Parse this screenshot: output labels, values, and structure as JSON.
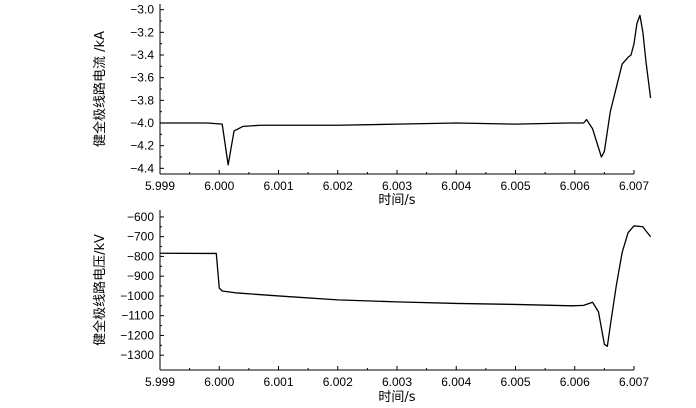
{
  "chart_data": [
    {
      "type": "line",
      "title": "",
      "xlabel": "时间/s",
      "ylabel": "健全极线路电流 /kA",
      "xlim": [
        5.999,
        6.007
      ],
      "ylim": [
        -4.45,
        -2.95
      ],
      "x_ticks": [
        "5.999",
        "6.000",
        "6.001",
        "6.002",
        "6.003",
        "6.004",
        "6.005",
        "6.006",
        "6.007"
      ],
      "y_ticks": [
        "−3.0",
        "−3.2",
        "−3.4",
        "−3.6",
        "−3.8",
        "−4.0",
        "−4.2",
        "−4.4"
      ],
      "x_tick_values": [
        5.999,
        6.0,
        6.001,
        6.002,
        6.003,
        6.004,
        6.005,
        6.006,
        6.007
      ],
      "y_tick_values": [
        -3.0,
        -3.2,
        -3.4,
        -3.6,
        -3.8,
        -4.0,
        -4.2,
        -4.4
      ],
      "grid": false,
      "legend": "none",
      "series": [
        {
          "x": [
            5.999,
            5.9998,
            6.00005,
            6.00015,
            6.00025,
            6.0004,
            6.0007,
            6.001,
            6.002,
            6.003,
            6.004,
            6.005,
            6.0059,
            6.00615,
            6.0062,
            6.0063,
            6.00645,
            6.0065,
            6.0066,
            6.0068,
            6.0069,
            6.00695,
            6.007,
            6.00705,
            6.0071,
            6.00715,
            6.0072,
            6.00728
          ],
          "y": [
            -4.0,
            -4.0,
            -4.01,
            -4.37,
            -4.07,
            -4.03,
            -4.02,
            -4.02,
            -4.02,
            -4.01,
            -4.0,
            -4.01,
            -4.0,
            -4.0,
            -3.97,
            -4.05,
            -4.3,
            -4.25,
            -3.9,
            -3.48,
            -3.42,
            -3.4,
            -3.3,
            -3.12,
            -3.05,
            -3.2,
            -3.45,
            -3.78
          ]
        }
      ]
    },
    {
      "type": "line",
      "title": "",
      "xlabel": "时间/s",
      "ylabel": "健全极线路电压/kV",
      "xlim": [
        5.999,
        6.007
      ],
      "ylim": [
        -1375,
        -565
      ],
      "x_ticks": [
        "5.999",
        "6.000",
        "6.001",
        "6.002",
        "6.003",
        "6.004",
        "6.005",
        "6.006",
        "6.007"
      ],
      "y_ticks": [
        "−600",
        "−700",
        "−800",
        "−900",
        "−1000",
        "−1100",
        "−1200",
        "−1300"
      ],
      "x_tick_values": [
        5.999,
        6.0,
        6.001,
        6.002,
        6.003,
        6.004,
        6.005,
        6.006,
        6.007
      ],
      "y_tick_values": [
        -600,
        -700,
        -800,
        -900,
        -1000,
        -1100,
        -1200,
        -1300
      ],
      "grid": false,
      "legend": "none",
      "series": [
        {
          "x": [
            5.999,
            5.9998,
            5.99995,
            6.0,
            6.00005,
            6.0003,
            6.001,
            6.002,
            6.003,
            6.004,
            6.005,
            6.00595,
            6.00615,
            6.0063,
            6.0064,
            6.0065,
            6.00655,
            6.0066,
            6.0067,
            6.0068,
            6.0069,
            6.007,
            6.00715,
            6.0072,
            6.00728
          ],
          "y": [
            -784,
            -785,
            -785,
            -960,
            -975,
            -985,
            -1000,
            -1020,
            -1030,
            -1038,
            -1043,
            -1050,
            -1048,
            -1032,
            -1080,
            -1245,
            -1255,
            -1150,
            -950,
            -780,
            -680,
            -645,
            -650,
            -670,
            -700
          ]
        }
      ]
    }
  ]
}
